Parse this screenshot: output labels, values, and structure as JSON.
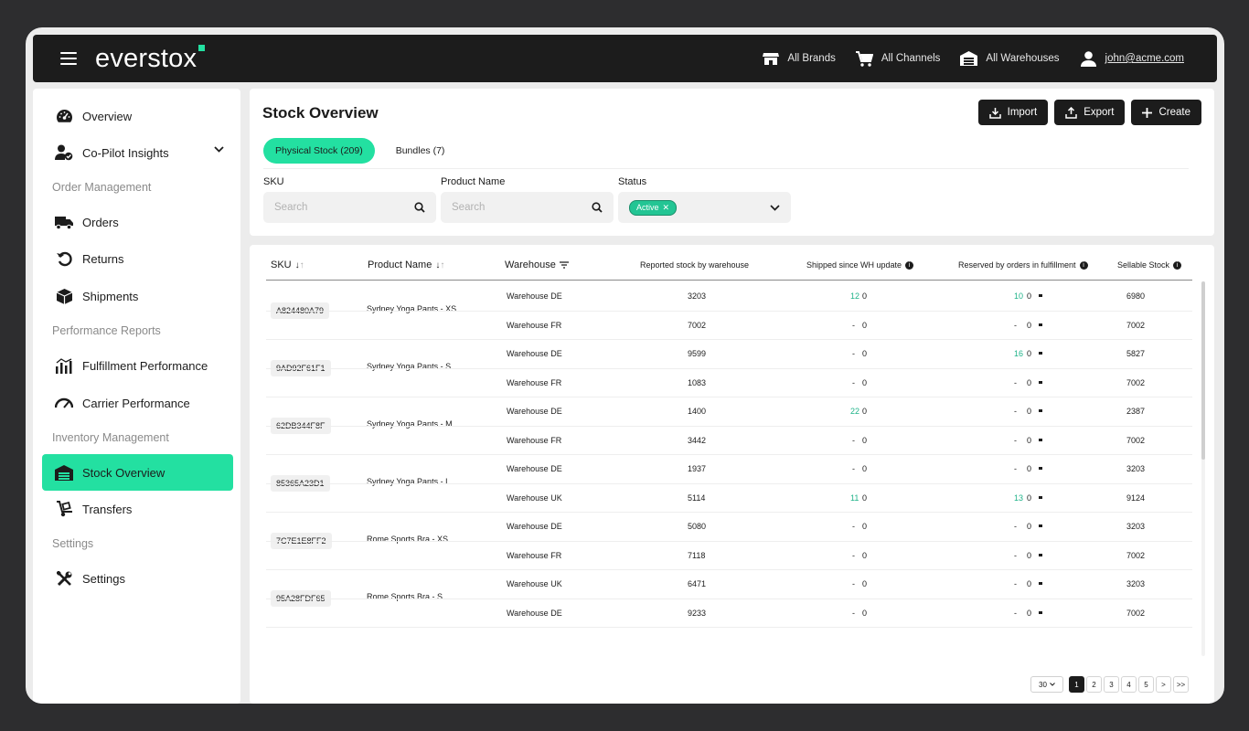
{
  "app": {
    "logo": "everstox"
  },
  "topbar": {
    "brands": "All Brands",
    "channels": "All Channels",
    "warehouses": "All Warehouses",
    "user": "john@acme.com"
  },
  "sidebar": {
    "overview": "Overview",
    "copilot": "Co-Pilot Insights",
    "sec_orders": "Order Management",
    "orders": "Orders",
    "returns": "Returns",
    "shipments": "Shipments",
    "sec_perf": "Performance Reports",
    "fulfillment": "Fulfillment Performance",
    "carrier": "Carrier Performance",
    "sec_inventory": "Inventory Management",
    "stock": "Stock Overview",
    "transfers": "Transfers",
    "sec_settings": "Settings",
    "settings": "Settings"
  },
  "header": {
    "title": "Stock Overview",
    "import": "Import",
    "export": "Export",
    "create": "Create",
    "tab_physical": "Physical Stock (209)",
    "tab_bundles": "Bundles (7)"
  },
  "filters": {
    "sku_label": "SKU",
    "sku_placeholder": "Search",
    "name_label": "Product Name",
    "name_placeholder": "Search",
    "status_label": "Status",
    "status_value": "Active"
  },
  "table": {
    "columns": {
      "sku": "SKU",
      "name": "Product Name",
      "warehouse": "Warehouse",
      "reported": "Reported stock by warehouse",
      "shipped": "Shipped since WH update",
      "reserved": "Reserved by orders in fulfillment",
      "sellable": "Sellable Stock"
    },
    "products": [
      {
        "sku": "A824480A79",
        "name": "Sydney Yoga Pants - XS",
        "rows": [
          {
            "wh": "Warehouse DE",
            "reported": "3203",
            "ship_a": "12",
            "ship_b": "0",
            "res_a": "10",
            "res_b": "0",
            "sellable": "6980"
          },
          {
            "wh": "Warehouse FR",
            "reported": "7002",
            "ship_a": "-",
            "ship_b": "0",
            "res_a": "-",
            "res_b": "0",
            "sellable": "7002"
          }
        ]
      },
      {
        "sku": "9AD92F61F1",
        "name": "Sydney Yoga Pants - S",
        "rows": [
          {
            "wh": "Warehouse DE",
            "reported": "9599",
            "ship_a": "-",
            "ship_b": "0",
            "res_a": "16",
            "res_b": "0",
            "sellable": "5827"
          },
          {
            "wh": "Warehouse FR",
            "reported": "1083",
            "ship_a": "-",
            "ship_b": "0",
            "res_a": "-",
            "res_b": "0",
            "sellable": "7002"
          }
        ]
      },
      {
        "sku": "62DB344F8F",
        "name": "Sydney Yoga Pants - M",
        "rows": [
          {
            "wh": "Warehouse DE",
            "reported": "1400",
            "ship_a": "22",
            "ship_b": "0",
            "res_a": "-",
            "res_b": "0",
            "sellable": "2387"
          },
          {
            "wh": "Warehouse FR",
            "reported": "3442",
            "ship_a": "-",
            "ship_b": "0",
            "res_a": "-",
            "res_b": "0",
            "sellable": "7002"
          }
        ]
      },
      {
        "sku": "85365A23D1",
        "name": "Sydney Yoga Pants - L",
        "rows": [
          {
            "wh": "Warehouse DE",
            "reported": "1937",
            "ship_a": "-",
            "ship_b": "0",
            "res_a": "-",
            "res_b": "0",
            "sellable": "3203"
          },
          {
            "wh": "Warehouse UK",
            "reported": "5114",
            "ship_a": "11",
            "ship_b": "0",
            "res_a": "13",
            "res_b": "0",
            "sellable": "9124"
          }
        ]
      },
      {
        "sku": "7C7E1E8FF2",
        "name": "Rome Sports Bra - XS",
        "rows": [
          {
            "wh": "Warehouse DE",
            "reported": "5080",
            "ship_a": "-",
            "ship_b": "0",
            "res_a": "-",
            "res_b": "0",
            "sellable": "3203"
          },
          {
            "wh": "Warehouse FR",
            "reported": "7118",
            "ship_a": "-",
            "ship_b": "0",
            "res_a": "-",
            "res_b": "0",
            "sellable": "7002"
          }
        ]
      },
      {
        "sku": "95A28FDF65",
        "name": "Rome Sports Bra - S",
        "rows": [
          {
            "wh": "Warehouse UK",
            "reported": "6471",
            "ship_a": "-",
            "ship_b": "0",
            "res_a": "-",
            "res_b": "0",
            "sellable": "3203"
          },
          {
            "wh": "Warehouse DE",
            "reported": "9233",
            "ship_a": "-",
            "ship_b": "0",
            "res_a": "-",
            "res_b": "0",
            "sellable": "7002"
          }
        ]
      }
    ]
  },
  "pagination": {
    "page_size": "30",
    "pages": [
      "1",
      "2",
      "3",
      "4",
      "5"
    ],
    "next": ">",
    "last": ">>"
  },
  "colors": {
    "accent": "#23e0a1",
    "dark": "#1c1c1c",
    "green_text": "#1fb389"
  }
}
